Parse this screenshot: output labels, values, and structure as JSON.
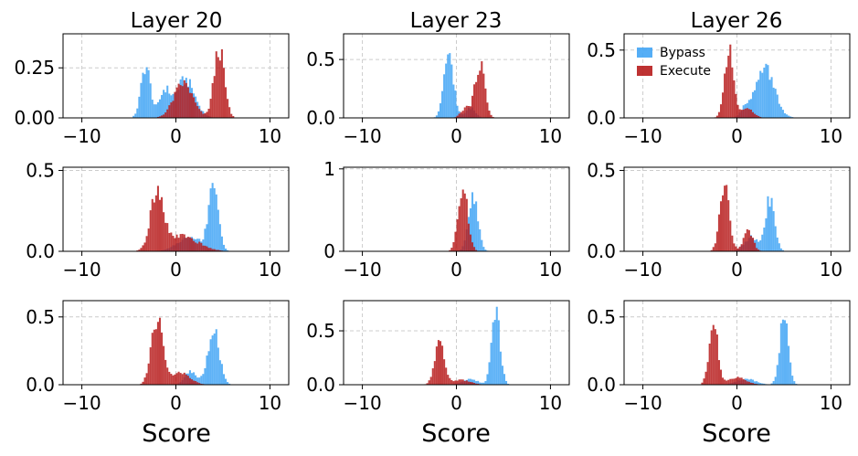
{
  "chart_data": {
    "type": "histogram-grid",
    "x_range": [
      -12,
      12
    ],
    "x_ticks": [
      -10,
      0,
      10
    ],
    "x_tick_labels": [
      "−10",
      "0",
      "10"
    ],
    "xlabel": "Score",
    "grid": "dashed",
    "legend": {
      "placement": "top-left",
      "panel": 2,
      "entries": [
        "Bypass",
        "Execute"
      ]
    },
    "colors": {
      "Bypass": "#42a5f5",
      "Execute": "#b71c1c"
    },
    "column_titles": [
      "Layer 20",
      "Layer 23",
      "Layer 26"
    ],
    "panels": [
      {
        "title": "Layer 20",
        "ylim": [
          0,
          0.42
        ],
        "yticks": [
          0,
          0.25
        ],
        "ytick_labels": [
          "0.00",
          "0.25"
        ],
        "series": [
          {
            "name": "Bypass",
            "peaks": [
              {
                "mu": -3.2,
                "sigma": 0.5,
                "height": 0.3
              },
              {
                "mu": -1.2,
                "sigma": 0.55,
                "height": 0.15
              },
              {
                "mu": 1.0,
                "sigma": 1.0,
                "height": 0.22
              }
            ]
          },
          {
            "name": "Execute",
            "peaks": [
              {
                "mu": 0.8,
                "sigma": 1.0,
                "height": 0.2
              },
              {
                "mu": 4.6,
                "sigma": 0.55,
                "height": 0.4
              }
            ]
          }
        ]
      },
      {
        "title": "Layer 23",
        "ylim": [
          0,
          0.72
        ],
        "yticks": [
          0,
          0.5
        ],
        "ytick_labels": [
          "0.0",
          "0.5"
        ],
        "series": [
          {
            "name": "Bypass",
            "peaks": [
              {
                "mu": -0.8,
                "sigma": 0.5,
                "height": 0.65
              },
              {
                "mu": 1.5,
                "sigma": 0.5,
                "height": 0.1
              }
            ]
          },
          {
            "name": "Execute",
            "peaks": [
              {
                "mu": 2.5,
                "sigma": 0.5,
                "height": 0.55
              },
              {
                "mu": 1.0,
                "sigma": 0.5,
                "height": 0.1
              }
            ]
          }
        ]
      },
      {
        "title": "Layer 26",
        "ylim": [
          0,
          0.62
        ],
        "yticks": [
          0,
          0.5
        ],
        "ytick_labels": [
          "0.0",
          "0.5"
        ],
        "series": [
          {
            "name": "Bypass",
            "peaks": [
              {
                "mu": 3.0,
                "sigma": 1.0,
                "height": 0.42
              },
              {
                "mu": 1.0,
                "sigma": 0.5,
                "height": 0.08
              }
            ]
          },
          {
            "name": "Execute",
            "peaks": [
              {
                "mu": -0.8,
                "sigma": 0.5,
                "height": 0.58
              },
              {
                "mu": 1.2,
                "sigma": 0.6,
                "height": 0.08
              }
            ]
          }
        ]
      },
      {
        "title": "",
        "ylim": [
          0,
          0.52
        ],
        "yticks": [
          0,
          0.5
        ],
        "ytick_labels": [
          "0.0",
          "0.5"
        ],
        "series": [
          {
            "name": "Bypass",
            "peaks": [
              {
                "mu": 4.0,
                "sigma": 0.5,
                "height": 0.5
              },
              {
                "mu": 1.5,
                "sigma": 1.3,
                "height": 0.1
              }
            ]
          },
          {
            "name": "Execute",
            "peaks": [
              {
                "mu": -2.0,
                "sigma": 0.65,
                "height": 0.43
              },
              {
                "mu": 0.5,
                "sigma": 1.8,
                "height": 0.11
              }
            ]
          }
        ]
      },
      {
        "title": "",
        "ylim": [
          0,
          1.02
        ],
        "yticks": [
          0,
          1
        ],
        "ytick_labels": [
          "0",
          "1"
        ],
        "series": [
          {
            "name": "Bypass",
            "peaks": [
              {
                "mu": 1.8,
                "sigma": 0.5,
                "height": 0.75
              }
            ]
          },
          {
            "name": "Execute",
            "peaks": [
              {
                "mu": 0.7,
                "sigma": 0.5,
                "height": 0.95
              }
            ]
          }
        ]
      },
      {
        "title": "",
        "ylim": [
          0,
          0.52
        ],
        "yticks": [
          0,
          0.5
        ],
        "ytick_labels": [
          "0.0",
          "0.5"
        ],
        "series": [
          {
            "name": "Bypass",
            "peaks": [
              {
                "mu": 3.5,
                "sigma": 0.5,
                "height": 0.38
              },
              {
                "mu": 1.5,
                "sigma": 0.7,
                "height": 0.1
              }
            ]
          },
          {
            "name": "Execute",
            "peaks": [
              {
                "mu": -1.3,
                "sigma": 0.5,
                "height": 0.48
              },
              {
                "mu": 1.2,
                "sigma": 0.5,
                "height": 0.14
              }
            ]
          }
        ]
      },
      {
        "title": "",
        "ylim": [
          0,
          0.62
        ],
        "yticks": [
          0,
          0.5
        ],
        "ytick_labels": [
          "0.0",
          "0.5"
        ],
        "series": [
          {
            "name": "Bypass",
            "peaks": [
              {
                "mu": 4.0,
                "sigma": 0.6,
                "height": 0.48
              },
              {
                "mu": 1.6,
                "sigma": 0.6,
                "height": 0.12
              }
            ]
          },
          {
            "name": "Execute",
            "peaks": [
              {
                "mu": -2.0,
                "sigma": 0.6,
                "height": 0.56
              },
              {
                "mu": 0.5,
                "sigma": 1.0,
                "height": 0.1
              }
            ]
          }
        ]
      },
      {
        "title": "",
        "ylim": [
          0,
          0.78
        ],
        "yticks": [
          0,
          0.5
        ],
        "ytick_labels": [
          "0.0",
          "0.5"
        ],
        "series": [
          {
            "name": "Bypass",
            "peaks": [
              {
                "mu": 4.2,
                "sigma": 0.45,
                "height": 0.75
              },
              {
                "mu": 1.5,
                "sigma": 0.8,
                "height": 0.06
              }
            ]
          },
          {
            "name": "Execute",
            "peaks": [
              {
                "mu": -1.8,
                "sigma": 0.5,
                "height": 0.48
              },
              {
                "mu": 0.5,
                "sigma": 1.0,
                "height": 0.05
              }
            ]
          }
        ]
      },
      {
        "title": "",
        "ylim": [
          0,
          0.62
        ],
        "yticks": [
          0,
          0.5
        ],
        "ytick_labels": [
          "0.0",
          "0.5"
        ],
        "series": [
          {
            "name": "Bypass",
            "peaks": [
              {
                "mu": 5.0,
                "sigma": 0.45,
                "height": 0.58
              },
              {
                "mu": 1.0,
                "sigma": 1.0,
                "height": 0.05
              }
            ]
          },
          {
            "name": "Execute",
            "peaks": [
              {
                "mu": -2.5,
                "sigma": 0.45,
                "height": 0.55
              },
              {
                "mu": 0.0,
                "sigma": 1.0,
                "height": 0.06
              }
            ]
          }
        ]
      }
    ]
  }
}
